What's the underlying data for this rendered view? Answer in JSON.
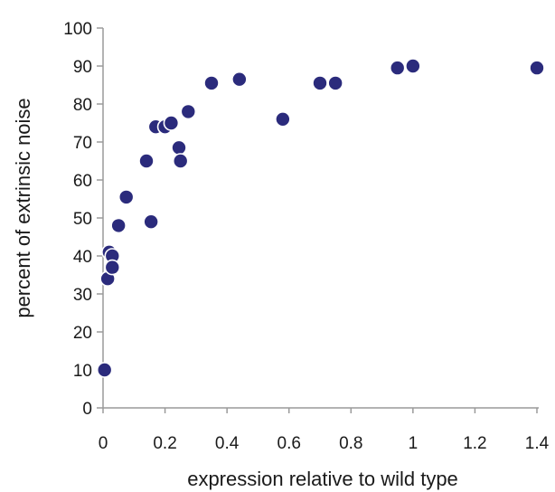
{
  "chart_data": {
    "type": "scatter",
    "title": "",
    "xlabel": "expression relative to wild type",
    "ylabel": "percent of extrinsic noise",
    "xlim": [
      0,
      1.4
    ],
    "ylim": [
      0,
      100
    ],
    "x_ticks": [
      "0",
      "0.2",
      "0.4",
      "0.6",
      "0.8",
      "1",
      "1.2",
      "1.4"
    ],
    "y_ticks": [
      "0",
      "10",
      "20",
      "30",
      "40",
      "50",
      "60",
      "70",
      "80",
      "90",
      "100"
    ],
    "grid": false,
    "legend": "none",
    "marker_color": "#2b2b7c",
    "series": [
      {
        "points": [
          {
            "x": 0.005,
            "y": 10
          },
          {
            "x": 0.015,
            "y": 34
          },
          {
            "x": 0.02,
            "y": 41
          },
          {
            "x": 0.03,
            "y": 40
          },
          {
            "x": 0.03,
            "y": 37
          },
          {
            "x": 0.05,
            "y": 48
          },
          {
            "x": 0.075,
            "y": 55.5
          },
          {
            "x": 0.14,
            "y": 65
          },
          {
            "x": 0.155,
            "y": 49
          },
          {
            "x": 0.17,
            "y": 74
          },
          {
            "x": 0.2,
            "y": 74
          },
          {
            "x": 0.22,
            "y": 75
          },
          {
            "x": 0.245,
            "y": 68.5
          },
          {
            "x": 0.25,
            "y": 65
          },
          {
            "x": 0.275,
            "y": 78
          },
          {
            "x": 0.35,
            "y": 85.5
          },
          {
            "x": 0.44,
            "y": 86.5
          },
          {
            "x": 0.58,
            "y": 76
          },
          {
            "x": 0.7,
            "y": 85.5
          },
          {
            "x": 0.75,
            "y": 85.5
          },
          {
            "x": 0.95,
            "y": 89.5
          },
          {
            "x": 1.0,
            "y": 90
          },
          {
            "x": 1.4,
            "y": 89.5
          }
        ]
      }
    ]
  }
}
